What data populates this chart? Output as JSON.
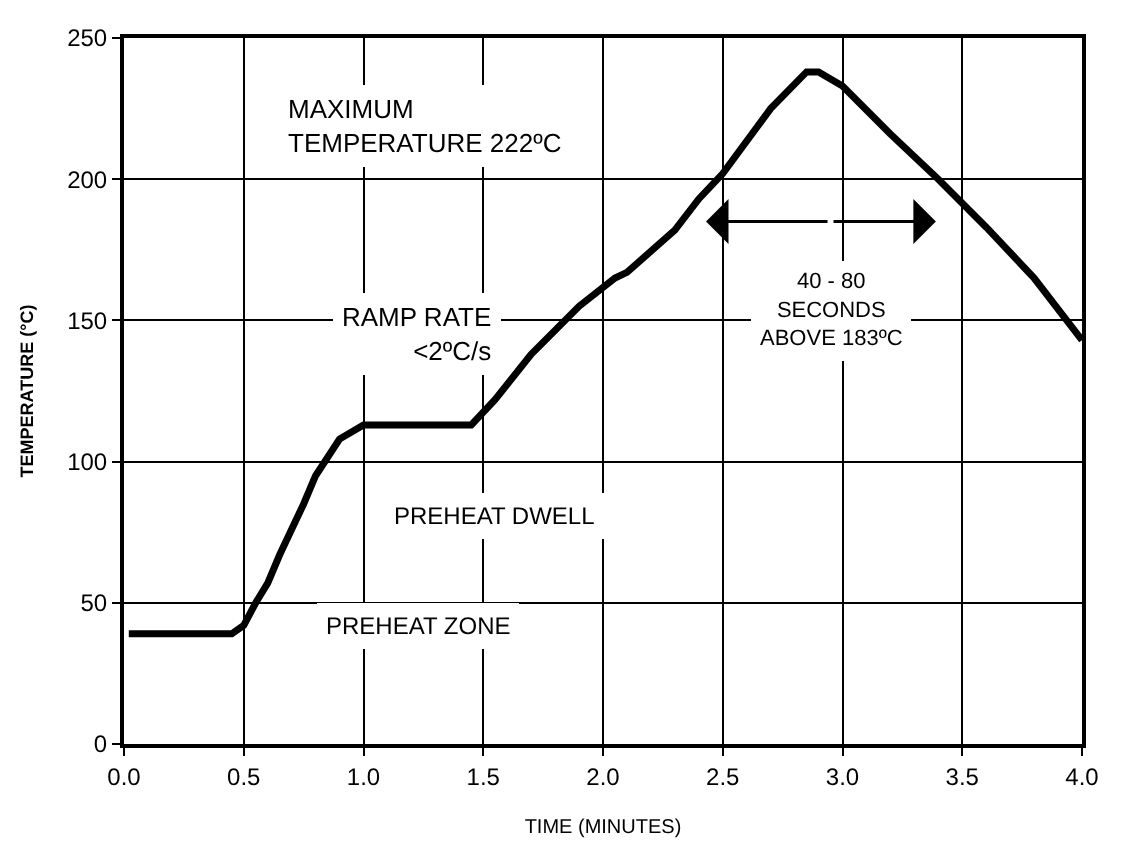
{
  "chart_data": {
    "type": "line",
    "xlabel": "TIME (MINUTES)",
    "ylabel": "TEMPERATURE (°C)",
    "x": [
      0.02,
      0.45,
      0.5,
      0.55,
      0.6,
      0.65,
      0.75,
      0.8,
      0.9,
      1.0,
      1.45,
      1.55,
      1.7,
      1.9,
      2.05,
      2.1,
      2.3,
      2.4,
      2.5,
      2.7,
      2.85,
      2.9,
      3.0,
      3.2,
      3.4,
      3.6,
      3.8,
      4.0
    ],
    "series": [
      {
        "color": "#000000",
        "values": [
          39,
          39,
          42,
          50,
          57,
          67,
          85,
          95,
          108,
          113,
          113,
          122,
          138,
          155,
          165,
          167,
          182,
          193,
          202,
          225,
          238,
          238,
          233,
          216,
          200,
          183,
          165,
          143
        ]
      }
    ],
    "xlim": [
      0,
      4
    ],
    "xticks": [
      {
        "value": 0,
        "label": "0.0"
      },
      0.5,
      {
        "value": 1,
        "label": "1.0"
      },
      1.5,
      {
        "value": 2,
        "label": "2.0"
      },
      2.5,
      {
        "value": 3,
        "label": "3.0"
      },
      3.5,
      {
        "value": 4,
        "label": "4.0"
      }
    ],
    "ylim": [
      0,
      250
    ],
    "yticks": [
      0,
      50,
      100,
      150,
      200,
      250
    ],
    "grid": true,
    "line_style": "solid",
    "marker": "none",
    "annotations": [
      "MAXIMUM\nTEMPERATURE 222ºC",
      "RAMP RATE\n<2ºC/s",
      "PREHEAT DWELL",
      "PREHEAT ZONE",
      "40 - 80\nSECONDS\nABOVE 183ºC"
    ]
  }
}
